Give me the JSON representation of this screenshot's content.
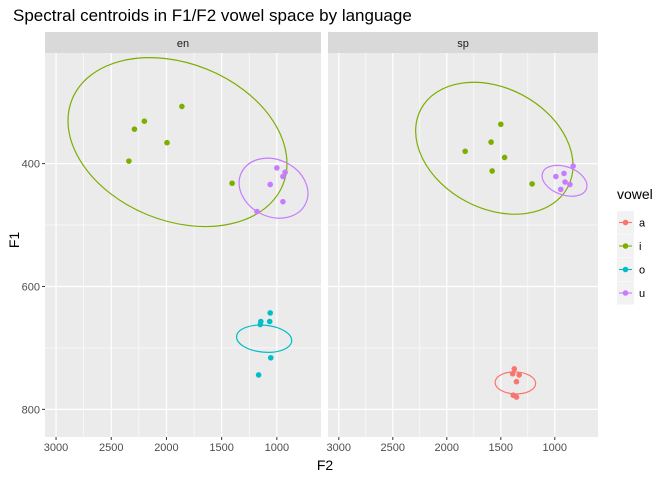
{
  "chart_data": {
    "type": "scatter",
    "title": "Spectral centroids in F1/F2 vowel space by language",
    "xlabel": "F2",
    "ylabel": "F1",
    "x_reversed": true,
    "y_reversed": true,
    "xlim": [
      3100,
      600
    ],
    "ylim": [
      220,
      845
    ],
    "x_ticks": [
      3000,
      2500,
      2000,
      1500,
      1000
    ],
    "y_ticks": [
      400,
      600,
      800
    ],
    "grid": true,
    "legend": {
      "title": "vowel",
      "placement": "right",
      "entries": [
        {
          "key": "a",
          "label": "a",
          "color": "#F8766D"
        },
        {
          "key": "i",
          "label": "i",
          "color": "#7CAE00"
        },
        {
          "key": "o",
          "label": "o",
          "color": "#00BFC4"
        },
        {
          "key": "u",
          "label": "u",
          "color": "#C77CFF"
        }
      ]
    },
    "panels": [
      {
        "strip": "en",
        "points": [
          {
            "vowel": "i",
            "x": 1860,
            "y": 307
          },
          {
            "vowel": "i",
            "x": 2200,
            "y": 331
          },
          {
            "vowel": "i",
            "x": 2290,
            "y": 344
          },
          {
            "vowel": "i",
            "x": 1995,
            "y": 366
          },
          {
            "vowel": "i",
            "x": 2340,
            "y": 396
          },
          {
            "vowel": "i",
            "x": 1405,
            "y": 432
          },
          {
            "vowel": "u",
            "x": 1000,
            "y": 407
          },
          {
            "vowel": "u",
            "x": 925,
            "y": 414
          },
          {
            "vowel": "u",
            "x": 945,
            "y": 421
          },
          {
            "vowel": "u",
            "x": 1060,
            "y": 434
          },
          {
            "vowel": "u",
            "x": 945,
            "y": 462
          },
          {
            "vowel": "u",
            "x": 1180,
            "y": 478
          },
          {
            "vowel": "o",
            "x": 1060,
            "y": 643
          },
          {
            "vowel": "o",
            "x": 1145,
            "y": 657
          },
          {
            "vowel": "o",
            "x": 1065,
            "y": 657
          },
          {
            "vowel": "o",
            "x": 1150,
            "y": 662
          },
          {
            "vowel": "o",
            "x": 1055,
            "y": 716
          },
          {
            "vowel": "o",
            "x": 1165,
            "y": 744
          }
        ],
        "ellipses": [
          {
            "vowel": "i",
            "cx": 1900,
            "cy": 365,
            "rx": 1030,
            "ry": 128,
            "angle": 22
          },
          {
            "vowel": "u",
            "cx": 1030,
            "cy": 440,
            "rx": 258,
            "ry": 58,
            "angle": -64
          },
          {
            "vowel": "o",
            "cx": 1115,
            "cy": 685,
            "rx": 122,
            "ry": 45,
            "angle": -85
          }
        ]
      },
      {
        "strip": "sp",
        "points": [
          {
            "vowel": "i",
            "x": 1500,
            "y": 336
          },
          {
            "vowel": "i",
            "x": 1590,
            "y": 365
          },
          {
            "vowel": "i",
            "x": 1830,
            "y": 380
          },
          {
            "vowel": "i",
            "x": 1465,
            "y": 390
          },
          {
            "vowel": "i",
            "x": 1580,
            "y": 412
          },
          {
            "vowel": "i",
            "x": 1210,
            "y": 433
          },
          {
            "vowel": "u",
            "x": 830,
            "y": 404
          },
          {
            "vowel": "u",
            "x": 915,
            "y": 416
          },
          {
            "vowel": "u",
            "x": 990,
            "y": 421
          },
          {
            "vowel": "u",
            "x": 905,
            "y": 430
          },
          {
            "vowel": "u",
            "x": 860,
            "y": 434
          },
          {
            "vowel": "u",
            "x": 945,
            "y": 442
          },
          {
            "vowel": "a",
            "x": 1375,
            "y": 734
          },
          {
            "vowel": "a",
            "x": 1390,
            "y": 742
          },
          {
            "vowel": "a",
            "x": 1330,
            "y": 744
          },
          {
            "vowel": "a",
            "x": 1355,
            "y": 755
          },
          {
            "vowel": "a",
            "x": 1385,
            "y": 777
          },
          {
            "vowel": "a",
            "x": 1355,
            "y": 780
          }
        ],
        "ellipses": [
          {
            "vowel": "i",
            "cx": 1560,
            "cy": 375,
            "rx": 770,
            "ry": 98,
            "angle": 28
          },
          {
            "vowel": "u",
            "cx": 910,
            "cy": 428,
            "rx": 130,
            "ry": 38,
            "angle": -70
          },
          {
            "vowel": "a",
            "cx": 1365,
            "cy": 757,
            "rx": 102,
            "ry": 33,
            "angle": -88
          }
        ]
      }
    ]
  }
}
